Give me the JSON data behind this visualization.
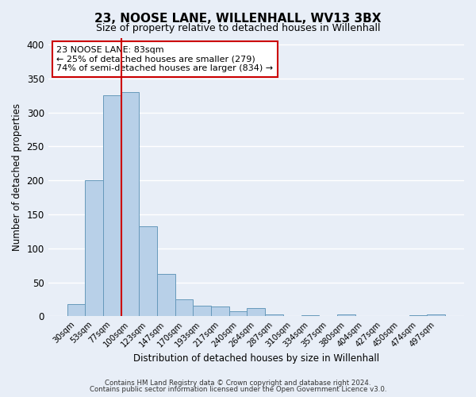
{
  "title": "23, NOOSE LANE, WILLENHALL, WV13 3BX",
  "subtitle": "Size of property relative to detached houses in Willenhall",
  "xlabel": "Distribution of detached houses by size in Willenhall",
  "ylabel": "Number of detached properties",
  "ylim": [
    0,
    410
  ],
  "yticks": [
    0,
    50,
    100,
    150,
    200,
    250,
    300,
    350,
    400
  ],
  "bar_color": "#b8d0e8",
  "bar_edge_color": "#6699bb",
  "vline_color": "#cc0000",
  "annotation_title": "23 NOOSE LANE: 83sqm",
  "annotation_line2": "← 25% of detached houses are smaller (279)",
  "annotation_line3": "74% of semi-detached houses are larger (834) →",
  "annotation_box_color": "#ffffff",
  "annotation_box_edge": "#cc0000",
  "footer1": "Contains HM Land Registry data © Crown copyright and database right 2024.",
  "footer2": "Contains public sector information licensed under the Open Government Licence v3.0.",
  "background_color": "#e8eef7",
  "plot_bg_color": "#e8eef7",
  "grid_color": "#ffffff",
  "all_labels": [
    "30sqm",
    "53sqm",
    "77sqm",
    "100sqm",
    "123sqm",
    "147sqm",
    "170sqm",
    "193sqm",
    "217sqm",
    "240sqm",
    "264sqm",
    "287sqm",
    "310sqm",
    "334sqm",
    "357sqm",
    "380sqm",
    "404sqm",
    "427sqm",
    "450sqm",
    "474sqm",
    "497sqm"
  ],
  "all_values": [
    18,
    200,
    325,
    330,
    133,
    62,
    25,
    16,
    14,
    8,
    12,
    3,
    0,
    2,
    0,
    3,
    0,
    1,
    0,
    2,
    3
  ]
}
